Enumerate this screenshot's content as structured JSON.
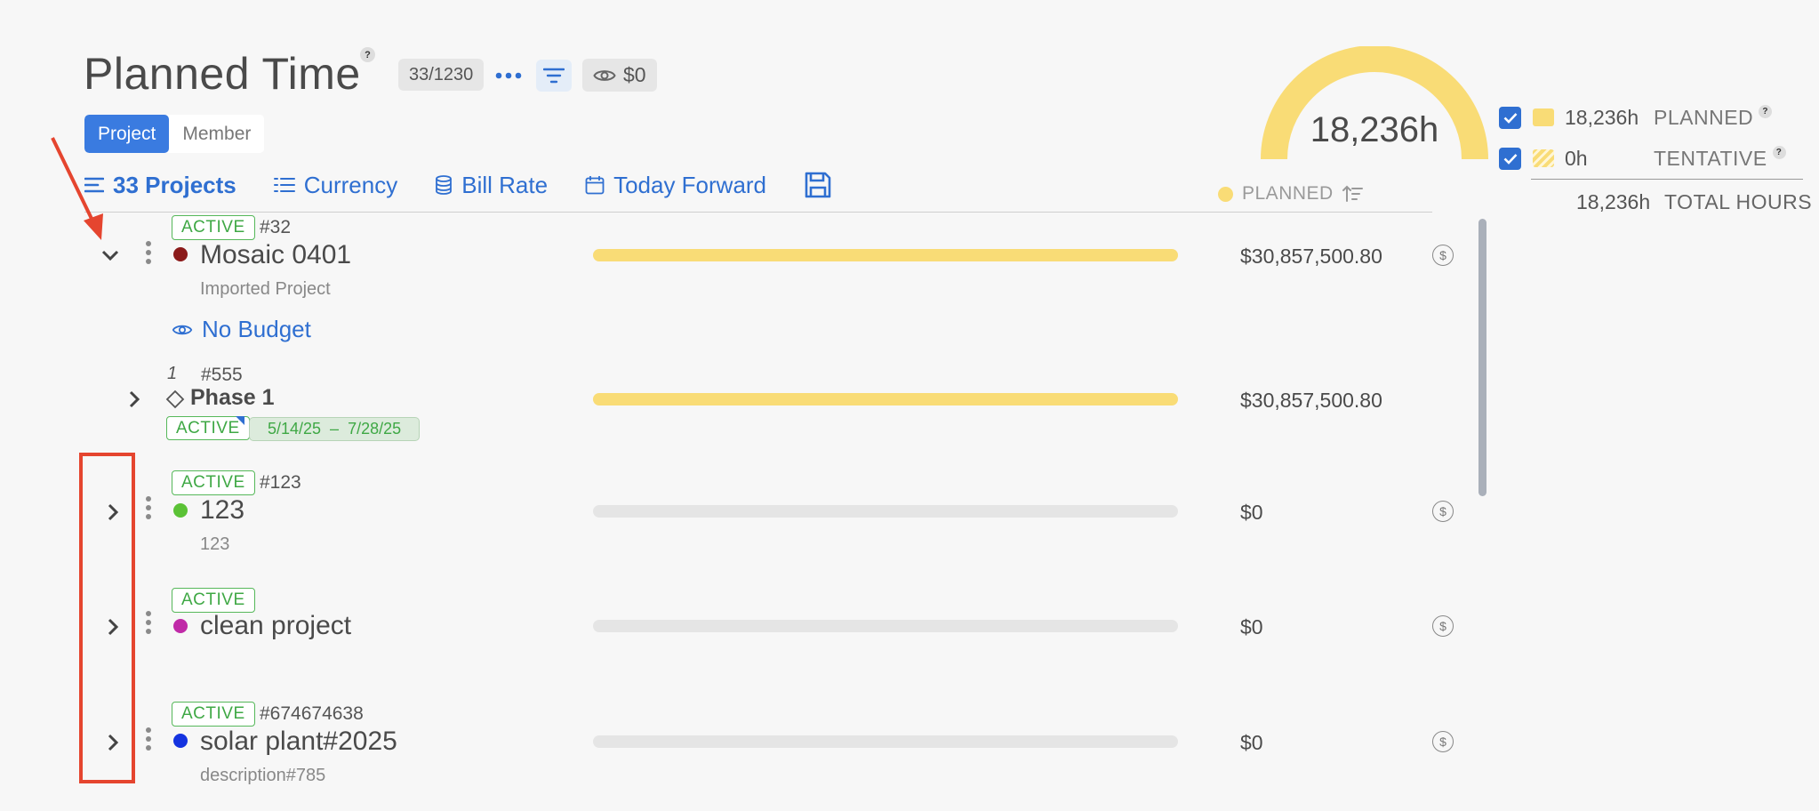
{
  "header": {
    "title": "Planned Time",
    "count": "33/1230",
    "budget_total": "$0"
  },
  "view_toggle": {
    "project": "Project",
    "member": "Member"
  },
  "toolbar": {
    "projects": "33 Projects",
    "currency": "Currency",
    "bill_rate": "Bill Rate",
    "range": "Today Forward"
  },
  "column_header": {
    "planned": "PLANNED"
  },
  "gauge": {
    "value": "18,236h",
    "fill_fraction": 1.0,
    "color": "#f9dc76"
  },
  "legend": {
    "planned_value": "18,236h",
    "planned_label": "PLANNED",
    "tentative_value": "0h",
    "tentative_label": "TENTATIVE",
    "total_value": "18,236h",
    "total_label": "TOTAL HOURS"
  },
  "projects": [
    {
      "status": "ACTIVE",
      "number": "#32",
      "name": "Mosaic 0401",
      "description": "Imported Project",
      "color": "#8b1a1a",
      "amount": "$30,857,500.80",
      "progress": 1.0,
      "expanded": true,
      "budget_link": "No Budget"
    },
    {
      "status": "ACTIVE",
      "number": "#123",
      "name": "123",
      "description": "123",
      "color": "#5bc236",
      "amount": "$0",
      "progress": 0
    },
    {
      "status": "ACTIVE",
      "number": "",
      "name": "clean project",
      "description": "",
      "color": "#c02aa8",
      "amount": "$0",
      "progress": 0
    },
    {
      "status": "ACTIVE",
      "number": "#674674638",
      "name": "solar plant#2025",
      "description": "description#785",
      "color": "#1433e0",
      "amount": "$0",
      "progress": 0
    }
  ],
  "phase": {
    "index": "1",
    "number": "#555",
    "name": "Phase 1",
    "status": "ACTIVE",
    "date_range": "5/14/25  –  7/28/25",
    "amount": "$30,857,500.80",
    "progress": 1.0
  },
  "icons": {
    "dollar": "$",
    "help": "?"
  }
}
